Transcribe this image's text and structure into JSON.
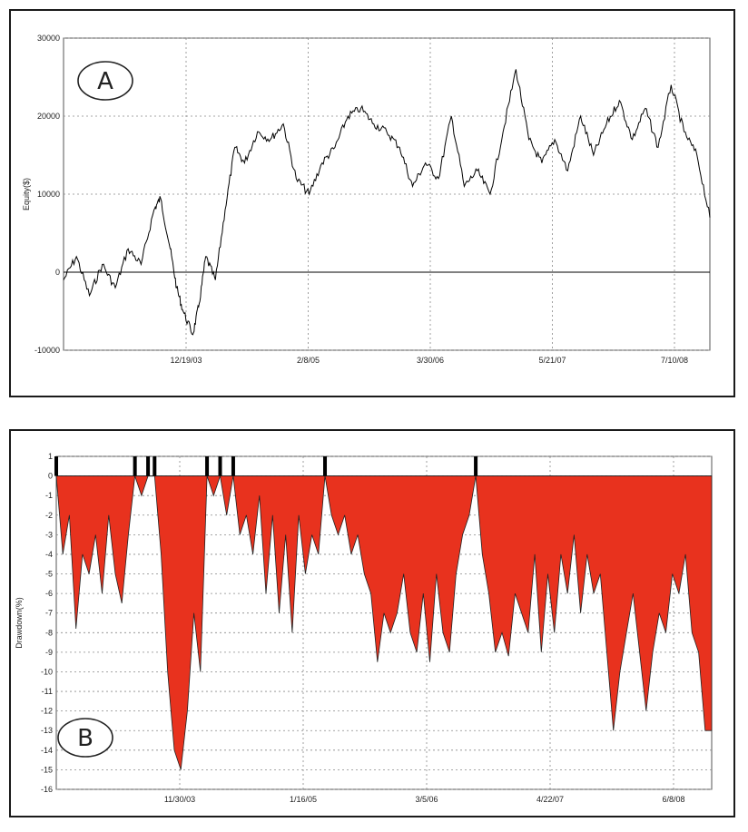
{
  "chart_data": [
    {
      "type": "line",
      "panel_label": "A",
      "ylabel": "Equity($)",
      "ylim": [
        -10000,
        30000
      ],
      "yticks": [
        -10000,
        0,
        10000,
        20000,
        30000
      ],
      "xtick_labels": [
        "12/19/03",
        "2/8/05",
        "3/30/06",
        "5/21/07",
        "7/10/08"
      ],
      "grid": true,
      "line_color": "#000000",
      "series": [
        {
          "x": [
            0,
            0.02,
            0.04,
            0.06,
            0.08,
            0.1,
            0.12,
            0.14,
            0.15,
            0.165,
            0.175,
            0.185,
            0.2,
            0.21,
            0.22,
            0.235,
            0.25,
            0.265,
            0.28,
            0.3,
            0.32,
            0.34,
            0.36,
            0.38,
            0.4,
            0.42,
            0.44,
            0.46,
            0.48,
            0.5,
            0.52,
            0.54,
            0.56,
            0.58,
            0.6,
            0.62,
            0.64,
            0.66,
            0.68,
            0.7,
            0.72,
            0.74,
            0.76,
            0.78,
            0.8,
            0.82,
            0.84,
            0.86,
            0.88,
            0.9,
            0.92,
            0.94,
            0.96,
            0.98,
            1.0
          ],
          "y": [
            -1000,
            2000,
            -3000,
            1000,
            -2000,
            3000,
            1000,
            8000,
            9500,
            3000,
            -2000,
            -5000,
            -8000,
            -4000,
            2000,
            -1000,
            8000,
            16000,
            14000,
            18000,
            17000,
            19000,
            12000,
            10000,
            14000,
            16000,
            20000,
            21000,
            19000,
            18000,
            16000,
            11000,
            14000,
            12000,
            20000,
            11000,
            13000,
            10000,
            18000,
            26000,
            17000,
            14000,
            17000,
            13000,
            20000,
            15000,
            19000,
            22000,
            17000,
            21000,
            16000,
            24000,
            18000,
            15000,
            7000
          ]
        }
      ]
    },
    {
      "type": "area",
      "panel_label": "B",
      "ylabel": "Drawdown(%)",
      "ylim": [
        -16,
        1
      ],
      "yticks": [
        1,
        0,
        -1,
        -2,
        -3,
        -4,
        -5,
        -6,
        -7,
        -8,
        -9,
        -10,
        -11,
        -12,
        -13,
        -14,
        -15,
        -16
      ],
      "xtick_labels": [
        "11/30/03",
        "1/16/05",
        "3/5/06",
        "4/22/07",
        "6/8/08"
      ],
      "grid": true,
      "fill_color": "#e8321e",
      "series": [
        {
          "x": [
            0,
            0.01,
            0.02,
            0.03,
            0.04,
            0.05,
            0.06,
            0.07,
            0.08,
            0.09,
            0.1,
            0.11,
            0.12,
            0.13,
            0.14,
            0.15,
            0.16,
            0.17,
            0.18,
            0.19,
            0.2,
            0.21,
            0.22,
            0.23,
            0.24,
            0.25,
            0.26,
            0.27,
            0.28,
            0.29,
            0.3,
            0.31,
            0.32,
            0.33,
            0.34,
            0.35,
            0.36,
            0.37,
            0.38,
            0.39,
            0.4,
            0.41,
            0.42,
            0.43,
            0.44,
            0.45,
            0.46,
            0.47,
            0.48,
            0.49,
            0.5,
            0.51,
            0.52,
            0.53,
            0.54,
            0.55,
            0.56,
            0.57,
            0.58,
            0.59,
            0.6,
            0.61,
            0.62,
            0.63,
            0.64,
            0.65,
            0.66,
            0.67,
            0.68,
            0.69,
            0.7,
            0.71,
            0.72,
            0.73,
            0.74,
            0.75,
            0.76,
            0.77,
            0.78,
            0.79,
            0.8,
            0.81,
            0.82,
            0.83,
            0.84,
            0.85,
            0.86,
            0.87,
            0.88,
            0.89,
            0.9,
            0.91,
            0.92,
            0.93,
            0.94,
            0.95,
            0.96,
            0.97,
            0.98,
            0.99,
            1.0
          ],
          "y": [
            0,
            -4,
            -2,
            -7.8,
            -4,
            -5,
            -3,
            -6,
            -2,
            -5,
            -6.5,
            -3,
            0,
            -1,
            0,
            0,
            -4,
            -10,
            -14,
            -15,
            -12,
            -7,
            -10,
            0,
            -1,
            0,
            -2,
            0,
            -3,
            -2,
            -4,
            -1,
            -6,
            -2,
            -7,
            -3,
            -8,
            -2,
            -5,
            -3,
            -4,
            0,
            -2,
            -3,
            -2,
            -4,
            -3,
            -5,
            -6,
            -9.5,
            -7,
            -8,
            -7,
            -5,
            -8,
            -9,
            -6,
            -9.5,
            -5,
            -8,
            -9,
            -5,
            -3,
            -2,
            0,
            -4,
            -6,
            -9,
            -8,
            -9.2,
            -6,
            -7,
            -8,
            -4,
            -9,
            -5,
            -8,
            -4,
            -6,
            -3,
            -7,
            -4,
            -6,
            -5,
            -9,
            -13,
            -10,
            -8,
            -6,
            -9,
            -12,
            -9,
            -7,
            -8,
            -5,
            -6,
            -4,
            -8,
            -9,
            -13,
            -13
          ]
        }
      ]
    }
  ]
}
